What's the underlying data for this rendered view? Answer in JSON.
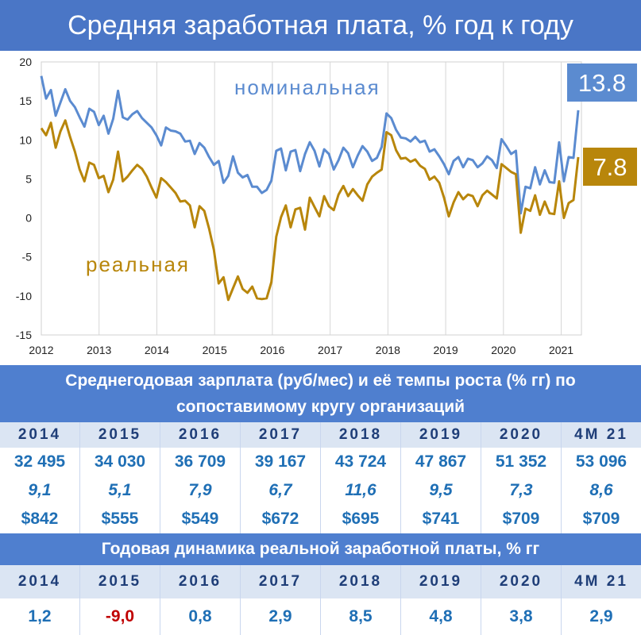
{
  "title": "Средняя заработная плата, % год к году",
  "chart_data": {
    "type": "line",
    "ylim": [
      -15,
      20
    ],
    "yticks": [
      "20",
      "15",
      "10",
      "5",
      "0",
      "-5",
      "-10",
      "-15"
    ],
    "xticks": [
      "2012",
      "2013",
      "2014",
      "2015",
      "2016",
      "2017",
      "2018",
      "2019",
      "2020",
      "2021"
    ],
    "series": [
      {
        "name": "номинальная",
        "color": "#5b8bd0",
        "last_label": "13.8",
        "values": [
          18.2,
          15.3,
          16.4,
          13.1,
          14.8,
          16.5,
          15.0,
          14.2,
          12.9,
          11.7,
          14.0,
          13.6,
          11.9,
          13.1,
          10.8,
          12.7,
          16.3,
          12.9,
          12.6,
          13.3,
          13.7,
          12.8,
          12.2,
          11.6,
          10.6,
          9.3,
          11.6,
          11.2,
          11.1,
          10.8,
          9.8,
          9.9,
          8.2,
          9.6,
          9.0,
          7.8,
          6.8,
          7.3,
          4.5,
          5.4,
          7.9,
          5.8,
          5.2,
          5.5,
          4.0,
          4.0,
          3.2,
          3.6,
          4.8,
          8.6,
          8.9,
          6.1,
          8.5,
          8.7,
          6.0,
          8.2,
          9.7,
          8.6,
          6.6,
          8.8,
          8.2,
          6.2,
          7.4,
          9.0,
          8.3,
          6.5,
          8.0,
          9.2,
          8.5,
          7.3,
          7.7,
          9.1,
          13.4,
          12.8,
          11.3,
          10.3,
          10.2,
          9.8,
          10.4,
          9.7,
          9.9,
          8.5,
          8.8,
          7.9,
          6.9,
          5.6,
          7.3,
          7.8,
          6.5,
          7.6,
          7.4,
          6.5,
          7.0,
          7.9,
          7.4,
          6.4,
          10.1,
          9.2,
          8.2,
          8.6,
          0.6,
          4.0,
          3.8,
          6.5,
          4.3,
          6.1,
          4.6,
          4.5,
          9.7,
          4.7,
          7.8,
          7.7,
          13.8
        ]
      },
      {
        "name": "реальная",
        "color": "#b8860b",
        "last_label": "7.8",
        "values": [
          11.5,
          10.6,
          12.2,
          9.0,
          11.1,
          12.5,
          10.4,
          8.5,
          6.2,
          4.7,
          7.1,
          6.8,
          5.1,
          5.4,
          3.3,
          4.9,
          8.5,
          4.7,
          5.3,
          6.1,
          6.8,
          6.3,
          5.3,
          3.9,
          2.6,
          5.1,
          4.6,
          3.9,
          3.2,
          2.1,
          2.2,
          1.6,
          -1.2,
          1.5,
          0.9,
          -1.4,
          -4.1,
          -8.4,
          -7.6,
          -10.5,
          -9.0,
          -7.5,
          -9.1,
          -9.6,
          -8.8,
          -10.3,
          -10.4,
          -10.3,
          -8.2,
          -2.4,
          0.1,
          1.6,
          -1.2,
          1.1,
          1.3,
          -1.5,
          2.6,
          1.4,
          0.2,
          2.8,
          1.5,
          1.0,
          3.0,
          4.1,
          2.8,
          3.7,
          2.9,
          2.2,
          4.3,
          5.3,
          5.8,
          6.2,
          11.0,
          10.6,
          8.7,
          7.6,
          7.7,
          7.2,
          7.5,
          6.7,
          6.3,
          4.9,
          5.3,
          4.5,
          2.6,
          0.2,
          2.0,
          3.3,
          2.4,
          3.0,
          2.8,
          1.5,
          2.9,
          3.5,
          3.0,
          2.5,
          6.9,
          6.4,
          5.9,
          5.6,
          -1.9,
          1.2,
          0.9,
          2.9,
          0.4,
          2.1,
          0.6,
          0.5,
          4.7,
          0.0,
          1.9,
          2.3,
          7.8
        ]
      }
    ]
  },
  "table1": {
    "header": "Среднегодовая зарплата (руб/мес) и её темпы роста (% гг)  по сопоставимому кругу организаций",
    "years": [
      "2014",
      "2015",
      "2016",
      "2017",
      "2018",
      "2019",
      "2020",
      "4M 21"
    ],
    "salary": [
      "32 495",
      "34 030",
      "36 709",
      "39 167",
      "43 724",
      "47 867",
      "51 352",
      "53 096"
    ],
    "growth": [
      "9,1",
      "5,1",
      "7,9",
      "6,7",
      "11,6",
      "9,5",
      "7,3",
      "8,6"
    ],
    "usd": [
      "$842",
      "$555",
      "$549",
      "$672",
      "$695",
      "$741",
      "$709",
      "$709"
    ]
  },
  "table2": {
    "header": "Годовая динамика реальной заработной платы, % гг",
    "years": [
      "2014",
      "2015",
      "2016",
      "2017",
      "2018",
      "2019",
      "2020",
      "4M 21"
    ],
    "values": [
      "1,2",
      "-9,0",
      "0,8",
      "2,9",
      "8,5",
      "4,8",
      "3,8",
      "2,9"
    ]
  }
}
